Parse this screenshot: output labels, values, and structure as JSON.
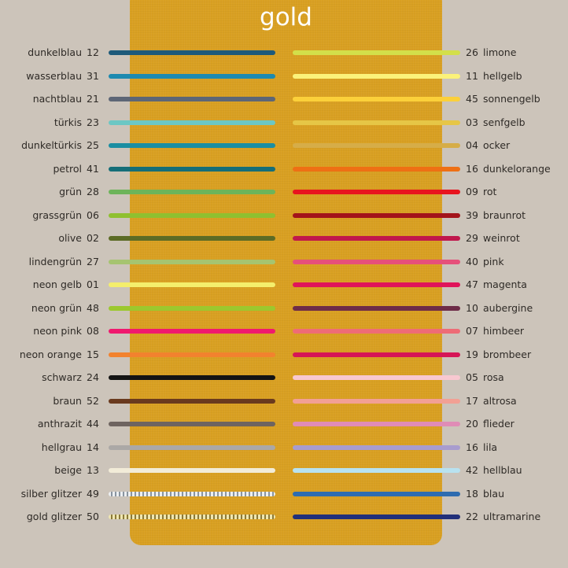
{
  "title": "gold",
  "left": [
    {
      "name": "dunkelblau",
      "num": "12",
      "color": "#1e5a7a"
    },
    {
      "name": "wasserblau",
      "num": "31",
      "color": "#1d8ab0"
    },
    {
      "name": "nachtblau",
      "num": "21",
      "color": "#5d6676"
    },
    {
      "name": "türkis",
      "num": "23",
      "color": "#6cc7c4"
    },
    {
      "name": "dunkeltürkis",
      "num": "25",
      "color": "#1a8ea2"
    },
    {
      "name": "petrol",
      "num": "41",
      "color": "#156e78"
    },
    {
      "name": "grün",
      "num": "28",
      "color": "#6db45a"
    },
    {
      "name": "grassgrün",
      "num": "06",
      "color": "#8fc030"
    },
    {
      "name": "olive",
      "num": "02",
      "color": "#5c6b25"
    },
    {
      "name": "lindengrün",
      "num": "27",
      "color": "#a6c470"
    },
    {
      "name": "neon gelb",
      "num": "01",
      "color": "#f4ee6c"
    },
    {
      "name": "neon grün",
      "num": "48",
      "color": "#9cc82e"
    },
    {
      "name": "neon pink",
      "num": "08",
      "color": "#f0196e"
    },
    {
      "name": "neon orange",
      "num": "15",
      "color": "#f2822e"
    },
    {
      "name": "schwarz",
      "num": "24",
      "color": "#141414"
    },
    {
      "name": "braun",
      "num": "52",
      "color": "#6a3a1e"
    },
    {
      "name": "anthrazit",
      "num": "44",
      "color": "#6e6460"
    },
    {
      "name": "hellgrau",
      "num": "14",
      "color": "#aba8a6"
    },
    {
      "name": "beige",
      "num": "13",
      "color": "#f2ecd8"
    },
    {
      "name": "silber glitzer",
      "num": "49",
      "color": "#c4ccd4",
      "glitter": "silver"
    },
    {
      "name": "gold glitzer",
      "num": "50",
      "color": "#c9b872",
      "glitter": "gold"
    }
  ],
  "right": [
    {
      "name": "limone",
      "num": "26",
      "color": "#d3df4a"
    },
    {
      "name": "hellgelb",
      "num": "11",
      "color": "#fbf27a"
    },
    {
      "name": "sonnengelb",
      "num": "45",
      "color": "#fbd03a"
    },
    {
      "name": "senfgelb",
      "num": "03",
      "color": "#e6c646"
    },
    {
      "name": "ocker",
      "num": "04",
      "color": "#d6ad48"
    },
    {
      "name": "dunkelorange",
      "num": "16",
      "color": "#ee7014"
    },
    {
      "name": "rot",
      "num": "09",
      "color": "#e8141e"
    },
    {
      "name": "braunrot",
      "num": "39",
      "color": "#a3141a"
    },
    {
      "name": "weinrot",
      "num": "29",
      "color": "#c0184c"
    },
    {
      "name": "pink",
      "num": "40",
      "color": "#e6507a"
    },
    {
      "name": "magenta",
      "num": "47",
      "color": "#e0145a"
    },
    {
      "name": "aubergine",
      "num": "10",
      "color": "#6e2c48"
    },
    {
      "name": "himbeer",
      "num": "07",
      "color": "#ee6c76"
    },
    {
      "name": "brombeer",
      "num": "19",
      "color": "#d61656"
    },
    {
      "name": "rosa",
      "num": "05",
      "color": "#f8c8d0"
    },
    {
      "name": "altrosa",
      "num": "17",
      "color": "#f2a094"
    },
    {
      "name": "flieder",
      "num": "20",
      "color": "#e08cb6"
    },
    {
      "name": "lila",
      "num": "16",
      "color": "#a89cce"
    },
    {
      "name": "hellblau",
      "num": "42",
      "color": "#b8e2f0"
    },
    {
      "name": "blau",
      "num": "18",
      "color": "#2e6cb0"
    },
    {
      "name": "ultramarine",
      "num": "22",
      "color": "#22307a"
    }
  ]
}
